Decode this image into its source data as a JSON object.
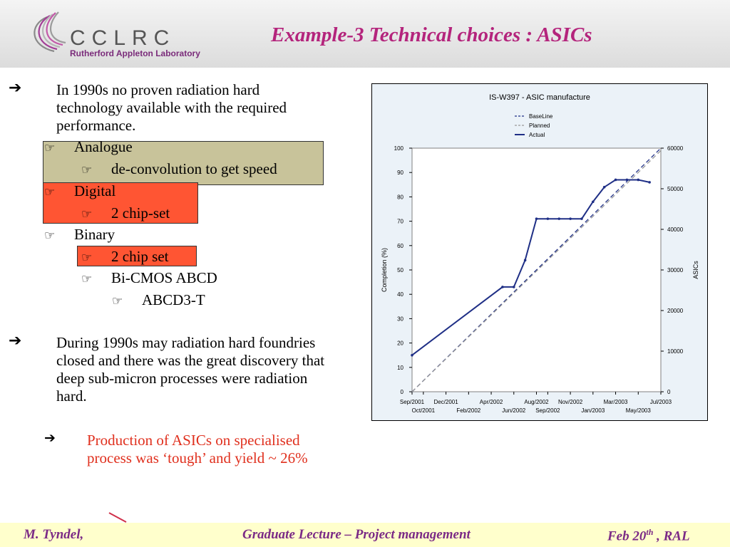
{
  "header": {
    "logo_org": "CCLRC",
    "logo_lab": "Rutherford Appleton Laboratory",
    "title": "Example-3 Technical choices : ASICs"
  },
  "content": {
    "bullet1": "In 1990s no proven radiation hard technology available with the required performance.",
    "analogue": "Analogue",
    "analogue_sub": "de-convolution to get speed",
    "digital": "Digital",
    "digital_sub": "2 chip-set",
    "binary": "Binary",
    "binary_sub1": "2 chip set",
    "binary_sub2": "Bi-CMOS ABCD",
    "binary_sub3": "ABCD3-T",
    "bullet2": "During 1990s may radiation hard foundries closed and there was the great discovery that deep sub-micron processes were radiation hard.",
    "bullet3": "Production of ASICs on specialised process was ‘tough’ and yield ~ 26%"
  },
  "chart_data": {
    "type": "line",
    "title": "IS-W397 - ASIC manufacture",
    "ylabel": "Completion (%)",
    "y2label": "ASICs",
    "ylim": [
      0,
      100
    ],
    "y2lim": [
      0,
      60000
    ],
    "yticks": [
      0,
      10,
      20,
      30,
      40,
      50,
      60,
      70,
      80,
      90,
      100
    ],
    "y2ticks": [
      0,
      10000,
      20000,
      30000,
      40000,
      50000,
      60000
    ],
    "xticks_upper": [
      "Sep/2001",
      "Dec/2001",
      "Apr/2002",
      "Aug/2002",
      "Nov/2002",
      "Mar/2003",
      "Jul/2003"
    ],
    "xticks_lower": [
      "Oct/2001",
      "Feb/2002",
      "Jun/2002",
      "Sep/2002",
      "Jan/2003",
      "May/2003"
    ],
    "legend_position": "top-right",
    "series": [
      {
        "name": "BaseLine",
        "color": "#1f2f86",
        "style": "dashed",
        "x": [
          "2001-09",
          "2003-07"
        ],
        "y": [
          0,
          100
        ]
      },
      {
        "name": "Planned",
        "color": "#999999",
        "style": "dashed",
        "x": [
          "2001-09",
          "2003-07"
        ],
        "y": [
          0,
          99
        ]
      },
      {
        "name": "Actual",
        "color": "#1f2f86",
        "style": "solid",
        "x": [
          "2001-09",
          "2002-05",
          "2002-06",
          "2002-07",
          "2002-08",
          "2002-09",
          "2002-10",
          "2002-11",
          "2002-12",
          "2003-01",
          "2003-02",
          "2003-03",
          "2003-04",
          "2003-05",
          "2003-06"
        ],
        "y": [
          15,
          43,
          43,
          54,
          71,
          71,
          71,
          71,
          71,
          78,
          84,
          87,
          87,
          87,
          86
        ]
      }
    ]
  },
  "footer": {
    "author": "M. Tyndel,",
    "course": "Graduate Lecture – Project management",
    "date": "Feb 20",
    "date_sup": "th",
    "place": " , RAL"
  },
  "colors": {
    "title": "#b4247c",
    "footer_text": "#7b2a86",
    "highlight_olive": "#c8c39a",
    "highlight_red": "#ff5533",
    "emphasis_red": "#e0301e"
  }
}
